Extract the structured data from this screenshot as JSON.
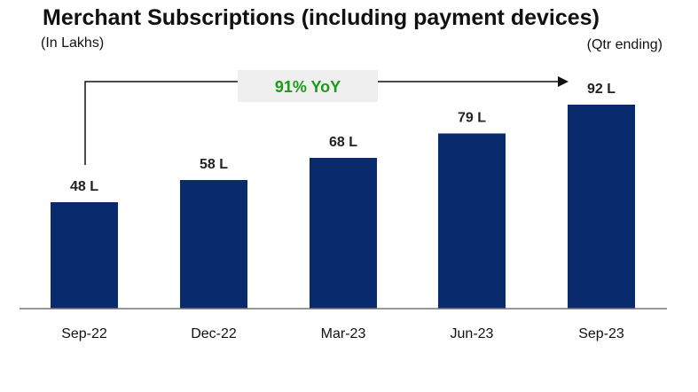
{
  "chart_data": {
    "type": "bar",
    "title": "Merchant Subscriptions (including payment devices)",
    "unit_note": "(In Lakhs)",
    "period_note": "(Qtr ending)",
    "categories": [
      "Sep-22",
      "Dec-22",
      "Mar-23",
      "Jun-23",
      "Sep-23"
    ],
    "values": [
      48,
      58,
      68,
      79,
      92
    ],
    "data_labels": [
      "48 L",
      "58 L",
      "68 L",
      "79 L",
      "92 L"
    ],
    "annotation": "91% YoY",
    "ylim": [
      0,
      100
    ],
    "grid": false,
    "legend": "none",
    "colors": {
      "bar": "#0a2a6e",
      "annotation_text": "#1a9a1a",
      "annotation_box": "#efefef"
    }
  }
}
